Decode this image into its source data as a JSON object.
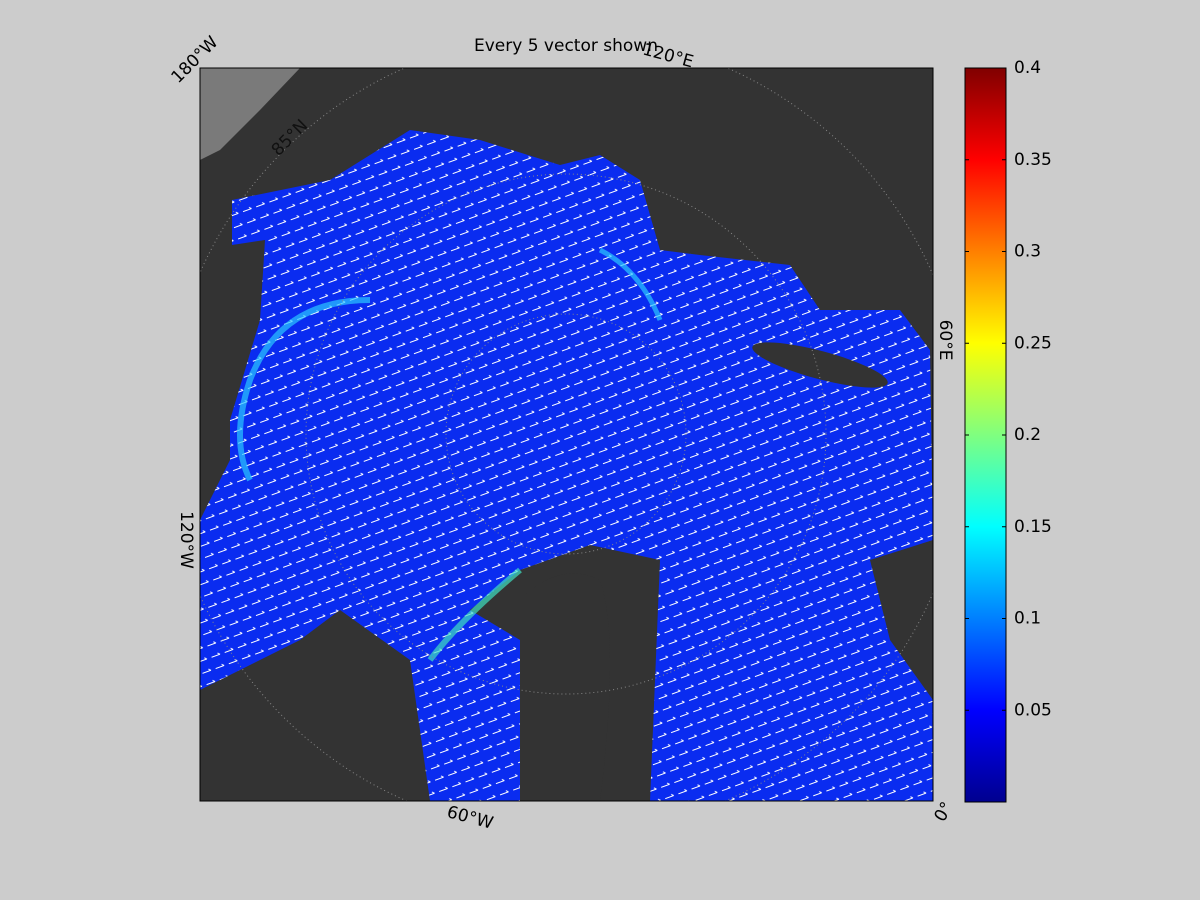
{
  "title": "Every 5 vector shown",
  "map": {
    "labels": [
      "180°W",
      "120°E",
      "60°E",
      "0°",
      "60°W",
      "120°W",
      "85°N"
    ]
  },
  "colorbar": {
    "lim": [
      0,
      0.4
    ],
    "ticks": [
      0.05,
      0.1,
      0.15,
      0.2,
      0.25,
      0.3,
      0.35,
      0.4
    ]
  }
}
